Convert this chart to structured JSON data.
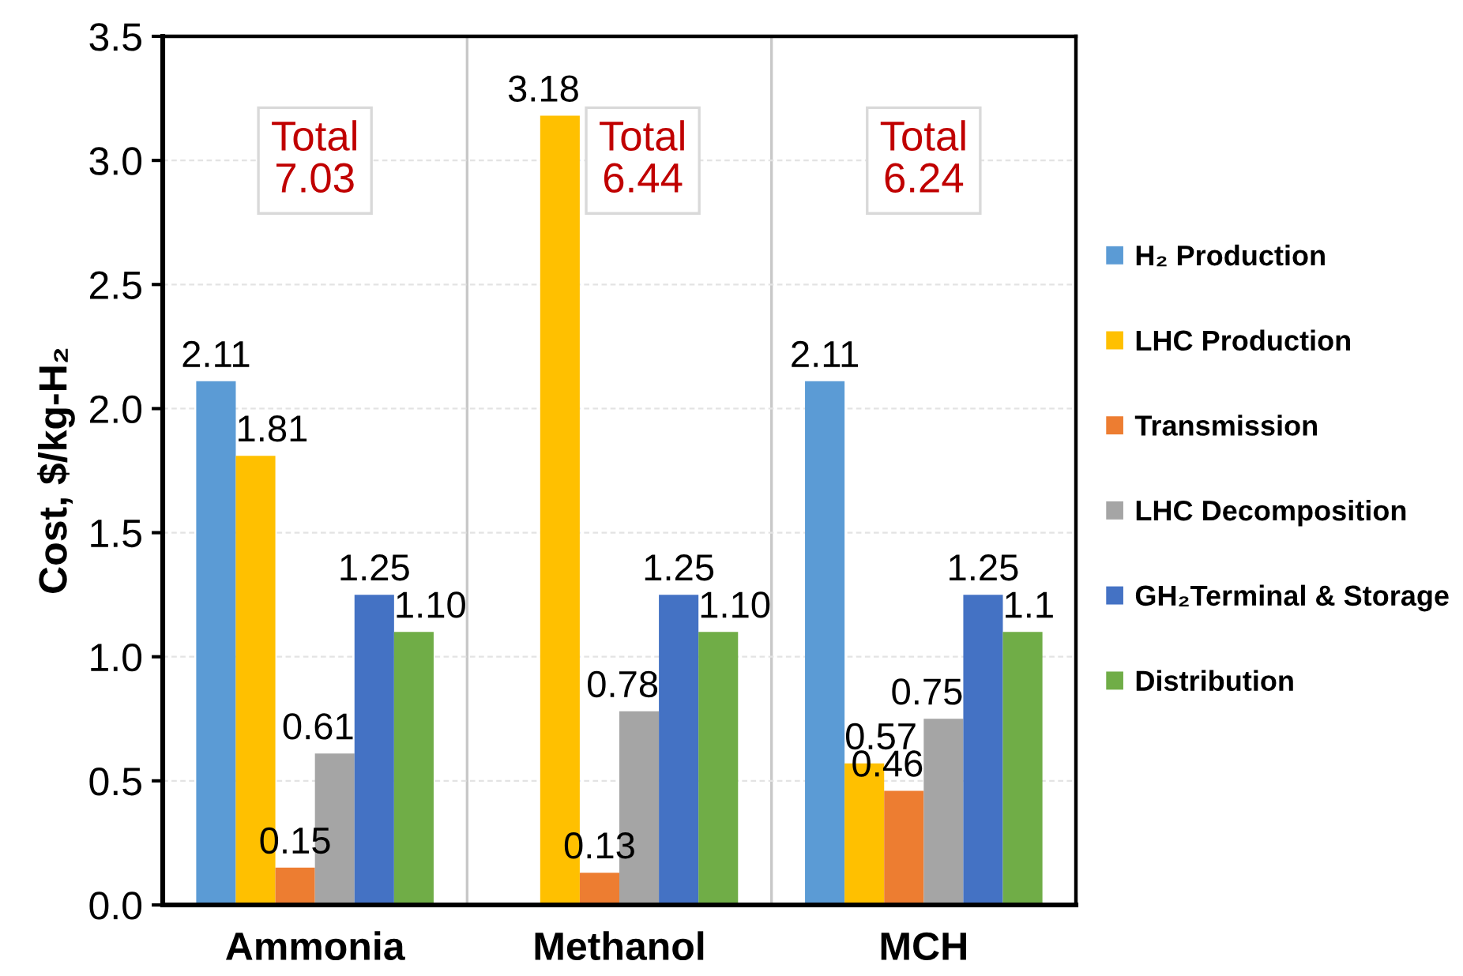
{
  "chart_data": {
    "type": "bar",
    "ylabel": "Cost, $/kg-H₂",
    "categories": [
      "Ammonia",
      "Methanol",
      "MCH"
    ],
    "series": [
      {
        "name": "H₂ Production",
        "color": "#5b9bd5",
        "values": [
          2.11,
          null,
          2.11
        ],
        "value_labels": [
          "2.11",
          null,
          "2.11"
        ]
      },
      {
        "name": "LHC Production",
        "color": "#ffc000",
        "values": [
          1.81,
          3.18,
          0.57
        ],
        "value_labels": [
          "1.81",
          "3.18",
          "0.57"
        ]
      },
      {
        "name": "Transmission",
        "color": "#ed7d31",
        "values": [
          0.15,
          0.13,
          0.46
        ],
        "value_labels": [
          "0.15",
          "0.13",
          "0.46"
        ]
      },
      {
        "name": "LHC Decomposition",
        "color": "#a5a5a5",
        "values": [
          0.61,
          0.78,
          0.75
        ],
        "value_labels": [
          "0.61",
          "0.78",
          "0.75"
        ]
      },
      {
        "name": "GH₂Terminal & Storage",
        "color": "#4472c4",
        "values": [
          1.25,
          1.25,
          1.25
        ],
        "value_labels": [
          "1.25",
          "1.25",
          "1.25"
        ]
      },
      {
        "name": "Distribution",
        "color": "#70ad47",
        "values": [
          1.1,
          1.1,
          1.1
        ],
        "value_labels": [
          "1.10",
          "1.10",
          "1.1"
        ]
      }
    ],
    "ylim": [
      0,
      3.5
    ],
    "yticks": [
      {
        "value": 0,
        "label": "0.0"
      },
      0.5,
      {
        "value": 1,
        "label": "1.0"
      },
      1.5,
      {
        "value": 2,
        "label": "2.0"
      },
      2.5,
      {
        "value": 3,
        "label": "3.0"
      },
      3.5
    ],
    "grid": true,
    "legend": "right",
    "annotations": [
      "Total\n7.03",
      "Total\n6.44",
      "Total\n6.24"
    ]
  }
}
